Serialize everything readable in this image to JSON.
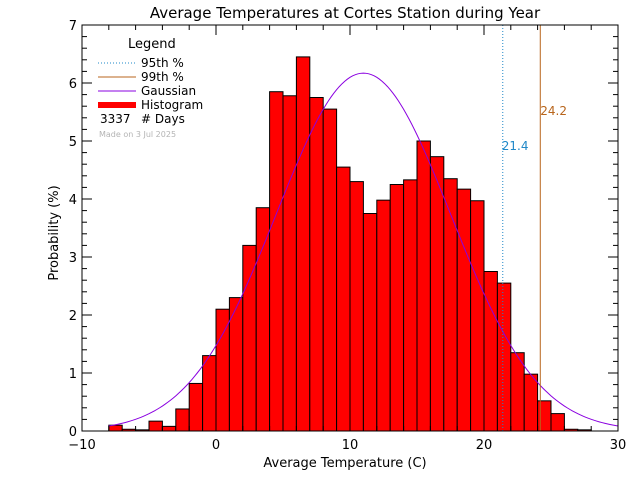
{
  "chart_data": {
    "type": "bar",
    "title": "Average Temperatures at Cortes Station during Year",
    "xlabel": "Average Temperature (C)",
    "ylabel": "Probability (%)",
    "xlim": [
      -10,
      30
    ],
    "ylim": [
      0,
      7
    ],
    "x_ticks": [
      "−10",
      "0",
      "10",
      "20",
      "30"
    ],
    "x_tick_values": [
      -10,
      0,
      10,
      20,
      30
    ],
    "y_ticks": [
      "0",
      "1",
      "2",
      "3",
      "4",
      "5",
      "6",
      "7"
    ],
    "y_tick_values": [
      0,
      1,
      2,
      3,
      4,
      5,
      6,
      7
    ],
    "bin_width": 1,
    "bins_left": [
      -8,
      -7,
      -6,
      -5,
      -4,
      -3,
      -2,
      -1,
      0,
      1,
      2,
      3,
      4,
      5,
      6,
      7,
      8,
      9,
      10,
      11,
      12,
      13,
      14,
      15,
      16,
      17,
      18,
      19,
      20,
      21,
      22,
      23,
      24,
      25,
      26,
      27
    ],
    "values": [
      0.1,
      0.03,
      0.02,
      0.17,
      0.08,
      0.38,
      0.82,
      1.3,
      2.1,
      2.3,
      3.2,
      3.85,
      5.85,
      5.78,
      6.45,
      5.75,
      5.55,
      4.55,
      4.3,
      3.75,
      3.98,
      4.25,
      4.33,
      5.0,
      4.73,
      4.35,
      4.17,
      3.97,
      2.75,
      2.55,
      1.35,
      0.98,
      0.52,
      0.3,
      0.03,
      0.02
    ],
    "gaussian": {
      "mean": 11.0,
      "sd": 6.5,
      "peak": 6.17
    },
    "percentile_lines": [
      {
        "name": "95th %",
        "x": 21.4,
        "label": "21.4",
        "color": "#1f88c8"
      },
      {
        "name": "99th %",
        "x": 24.2,
        "label": "24.2",
        "color": "#b8651c"
      }
    ],
    "legend": {
      "title": "Legend",
      "placement": "top-left",
      "items": [
        {
          "label": "95th %",
          "style": "dotted",
          "color": "#1f88c8"
        },
        {
          "label": "99th %",
          "style": "solid",
          "color": "#b8651c"
        },
        {
          "label": "Gaussian",
          "style": "solid",
          "color": "#8a00e0"
        },
        {
          "label": "Histogram",
          "style": "thick",
          "color": "#ff0000"
        }
      ],
      "days_count": "3337",
      "days_label": "# Days",
      "made_on": "Made on 3 Jul 2025"
    },
    "colors": {
      "histogram": "#ff0000",
      "gaussian": "#8a00e0",
      "outline": "#000000"
    }
  }
}
